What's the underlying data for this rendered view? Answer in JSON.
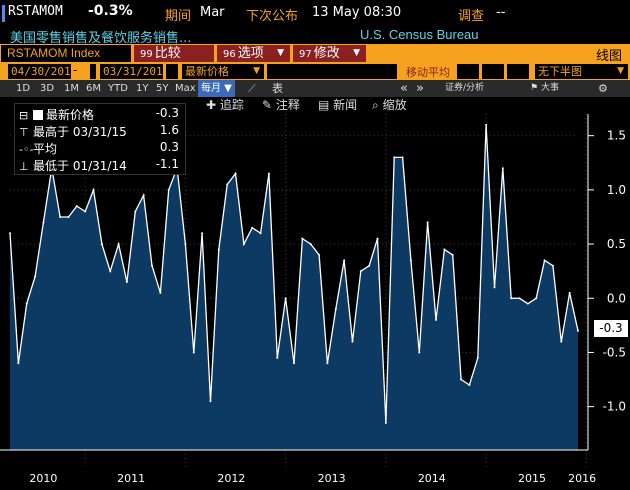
{
  "header": {
    "ticker": "RSTAMOM",
    "change": "-0.3%",
    "period_label": "期间",
    "period_value": "Mar",
    "next_label": "下次公布",
    "next_value": "13 May 08:30",
    "survey_label": "调查",
    "survey_value": "--",
    "description": "美国零售销售及餐饮服务销售...",
    "source": "U.S. Census Bureau"
  },
  "toolbar": {
    "index_name": "RSTAMOM Index",
    "compare_num": "99",
    "compare_label": "比较",
    "options_num": "96",
    "options_label": "选项",
    "edit_num": "97",
    "edit_label": "修改",
    "chart_type": "线图"
  },
  "date_row": {
    "start": "04/30/2010",
    "dash": "-",
    "end": "03/31/2016",
    "last_price": "最新价格",
    "ma_label": "移动平均",
    "panel": "无下半图"
  },
  "periods": [
    "1D",
    "3D",
    "1M",
    "6M",
    "YTD",
    "1Y",
    "5Y",
    "Max"
  ],
  "period_selected": "每月",
  "table_label": "表",
  "securities_label": "证券/分析",
  "events_label": "大事",
  "tools": {
    "track": "追踪",
    "annotate": "注释",
    "news": "新闻",
    "zoom": "缩放"
  },
  "legend": {
    "last_label": "最新价格",
    "last_value": "-0.3",
    "high_label": "最高于 03/31/15",
    "high_value": "1.6",
    "avg_label": "平均",
    "avg_value": "0.3",
    "low_label": "最低于 01/31/14",
    "low_value": "-1.1"
  },
  "last_badge": "-0.3",
  "colors": {
    "accent": "#f6a21e",
    "cyan": "#5fd3e8",
    "area_fill": "#0d3a63",
    "line": "#ffffff"
  },
  "chart_data": {
    "type": "area",
    "title": "",
    "xlabel": "",
    "ylabel": "",
    "ylim": [
      -1.4,
      1.7
    ],
    "yticks": [
      -1.0,
      -0.5,
      0.0,
      0.5,
      1.0,
      1.5
    ],
    "ytick_labels": [
      "-1.0",
      "-0.5",
      "0.0",
      "0.5",
      "1.0",
      "1.5"
    ],
    "xtick_labels": [
      "2010",
      "2011",
      "2012",
      "2013",
      "2014",
      "2015",
      "2016"
    ],
    "x_start": "2010-04",
    "series": [
      {
        "values": [
          0.6,
          -0.6,
          -0.05,
          0.2,
          0.7,
          1.2,
          0.75,
          0.75,
          0.85,
          0.8,
          1.0,
          0.5,
          0.25,
          0.5,
          0.15,
          0.8,
          0.95,
          0.3,
          0.05,
          1.0,
          1.2,
          0.5,
          -0.5,
          0.6,
          -0.95,
          0.45,
          1.05,
          1.15,
          0.5,
          0.65,
          0.6,
          1.15,
          -0.55,
          0.0,
          -0.6,
          0.55,
          0.5,
          0.4,
          -0.6,
          -0.1,
          0.35,
          -0.4,
          0.25,
          0.3,
          0.55,
          -1.15,
          1.3,
          1.3,
          0.35,
          -0.5,
          0.7,
          -0.2,
          0.45,
          0.4,
          -0.75,
          -0.8,
          -0.55,
          1.6,
          0.1,
          1.2,
          0.0,
          0.0,
          -0.05,
          0.0,
          0.35,
          0.3,
          -0.4,
          0.05,
          -0.3
        ]
      }
    ]
  }
}
